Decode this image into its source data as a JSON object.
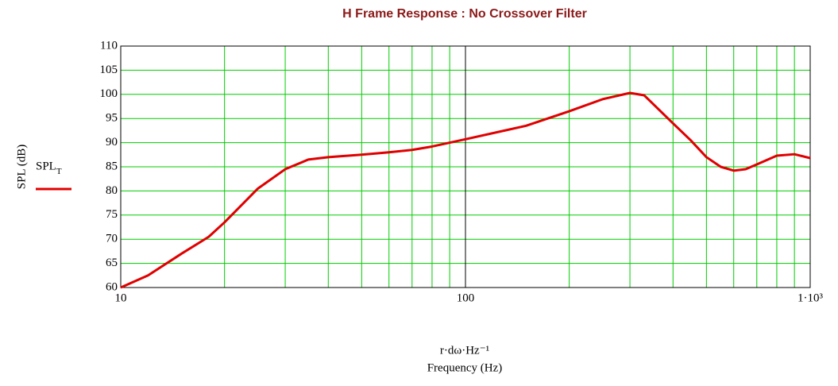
{
  "chart_data": {
    "type": "line",
    "title": "H Frame Response : No Crossover Filter",
    "y_label": "SPL (dB)",
    "x_label": [
      "r·dω·Hz⁻¹",
      "Frequency (Hz)"
    ],
    "x": [
      10,
      12,
      15,
      18,
      20,
      25,
      30,
      35,
      40,
      50,
      60,
      70,
      80,
      100,
      150,
      200,
      250,
      300,
      330,
      400,
      450,
      500,
      550,
      600,
      650,
      700,
      800,
      900,
      1000
    ],
    "series": [
      {
        "name": "SPL_T",
        "color": "#e00000",
        "values": [
          60,
          62.5,
          67,
          70.5,
          73.5,
          80.5,
          84.5,
          86.5,
          87,
          87.5,
          88,
          88.5,
          89.2,
          90.7,
          93.5,
          96.5,
          99,
          100.3,
          99.8,
          94,
          90.5,
          87,
          85,
          84.2,
          84.5,
          85.5,
          87.3,
          87.6,
          86.8
        ]
      }
    ],
    "x_log": true,
    "xlim": [
      10,
      1000
    ],
    "xticks": [
      10,
      100,
      {
        "value": 1000,
        "label": "1·10³"
      }
    ],
    "x_minor_ticks": [
      20,
      30,
      40,
      50,
      60,
      70,
      80,
      90,
      200,
      300,
      400,
      500,
      600,
      700,
      800,
      900
    ],
    "ylim": [
      60,
      110
    ],
    "yticks": [
      60,
      65,
      70,
      75,
      80,
      85,
      90,
      95,
      100,
      105,
      110
    ],
    "grid": true,
    "grid_color": "#00cc00",
    "major_grid_color": "#000000",
    "legend": "left"
  }
}
